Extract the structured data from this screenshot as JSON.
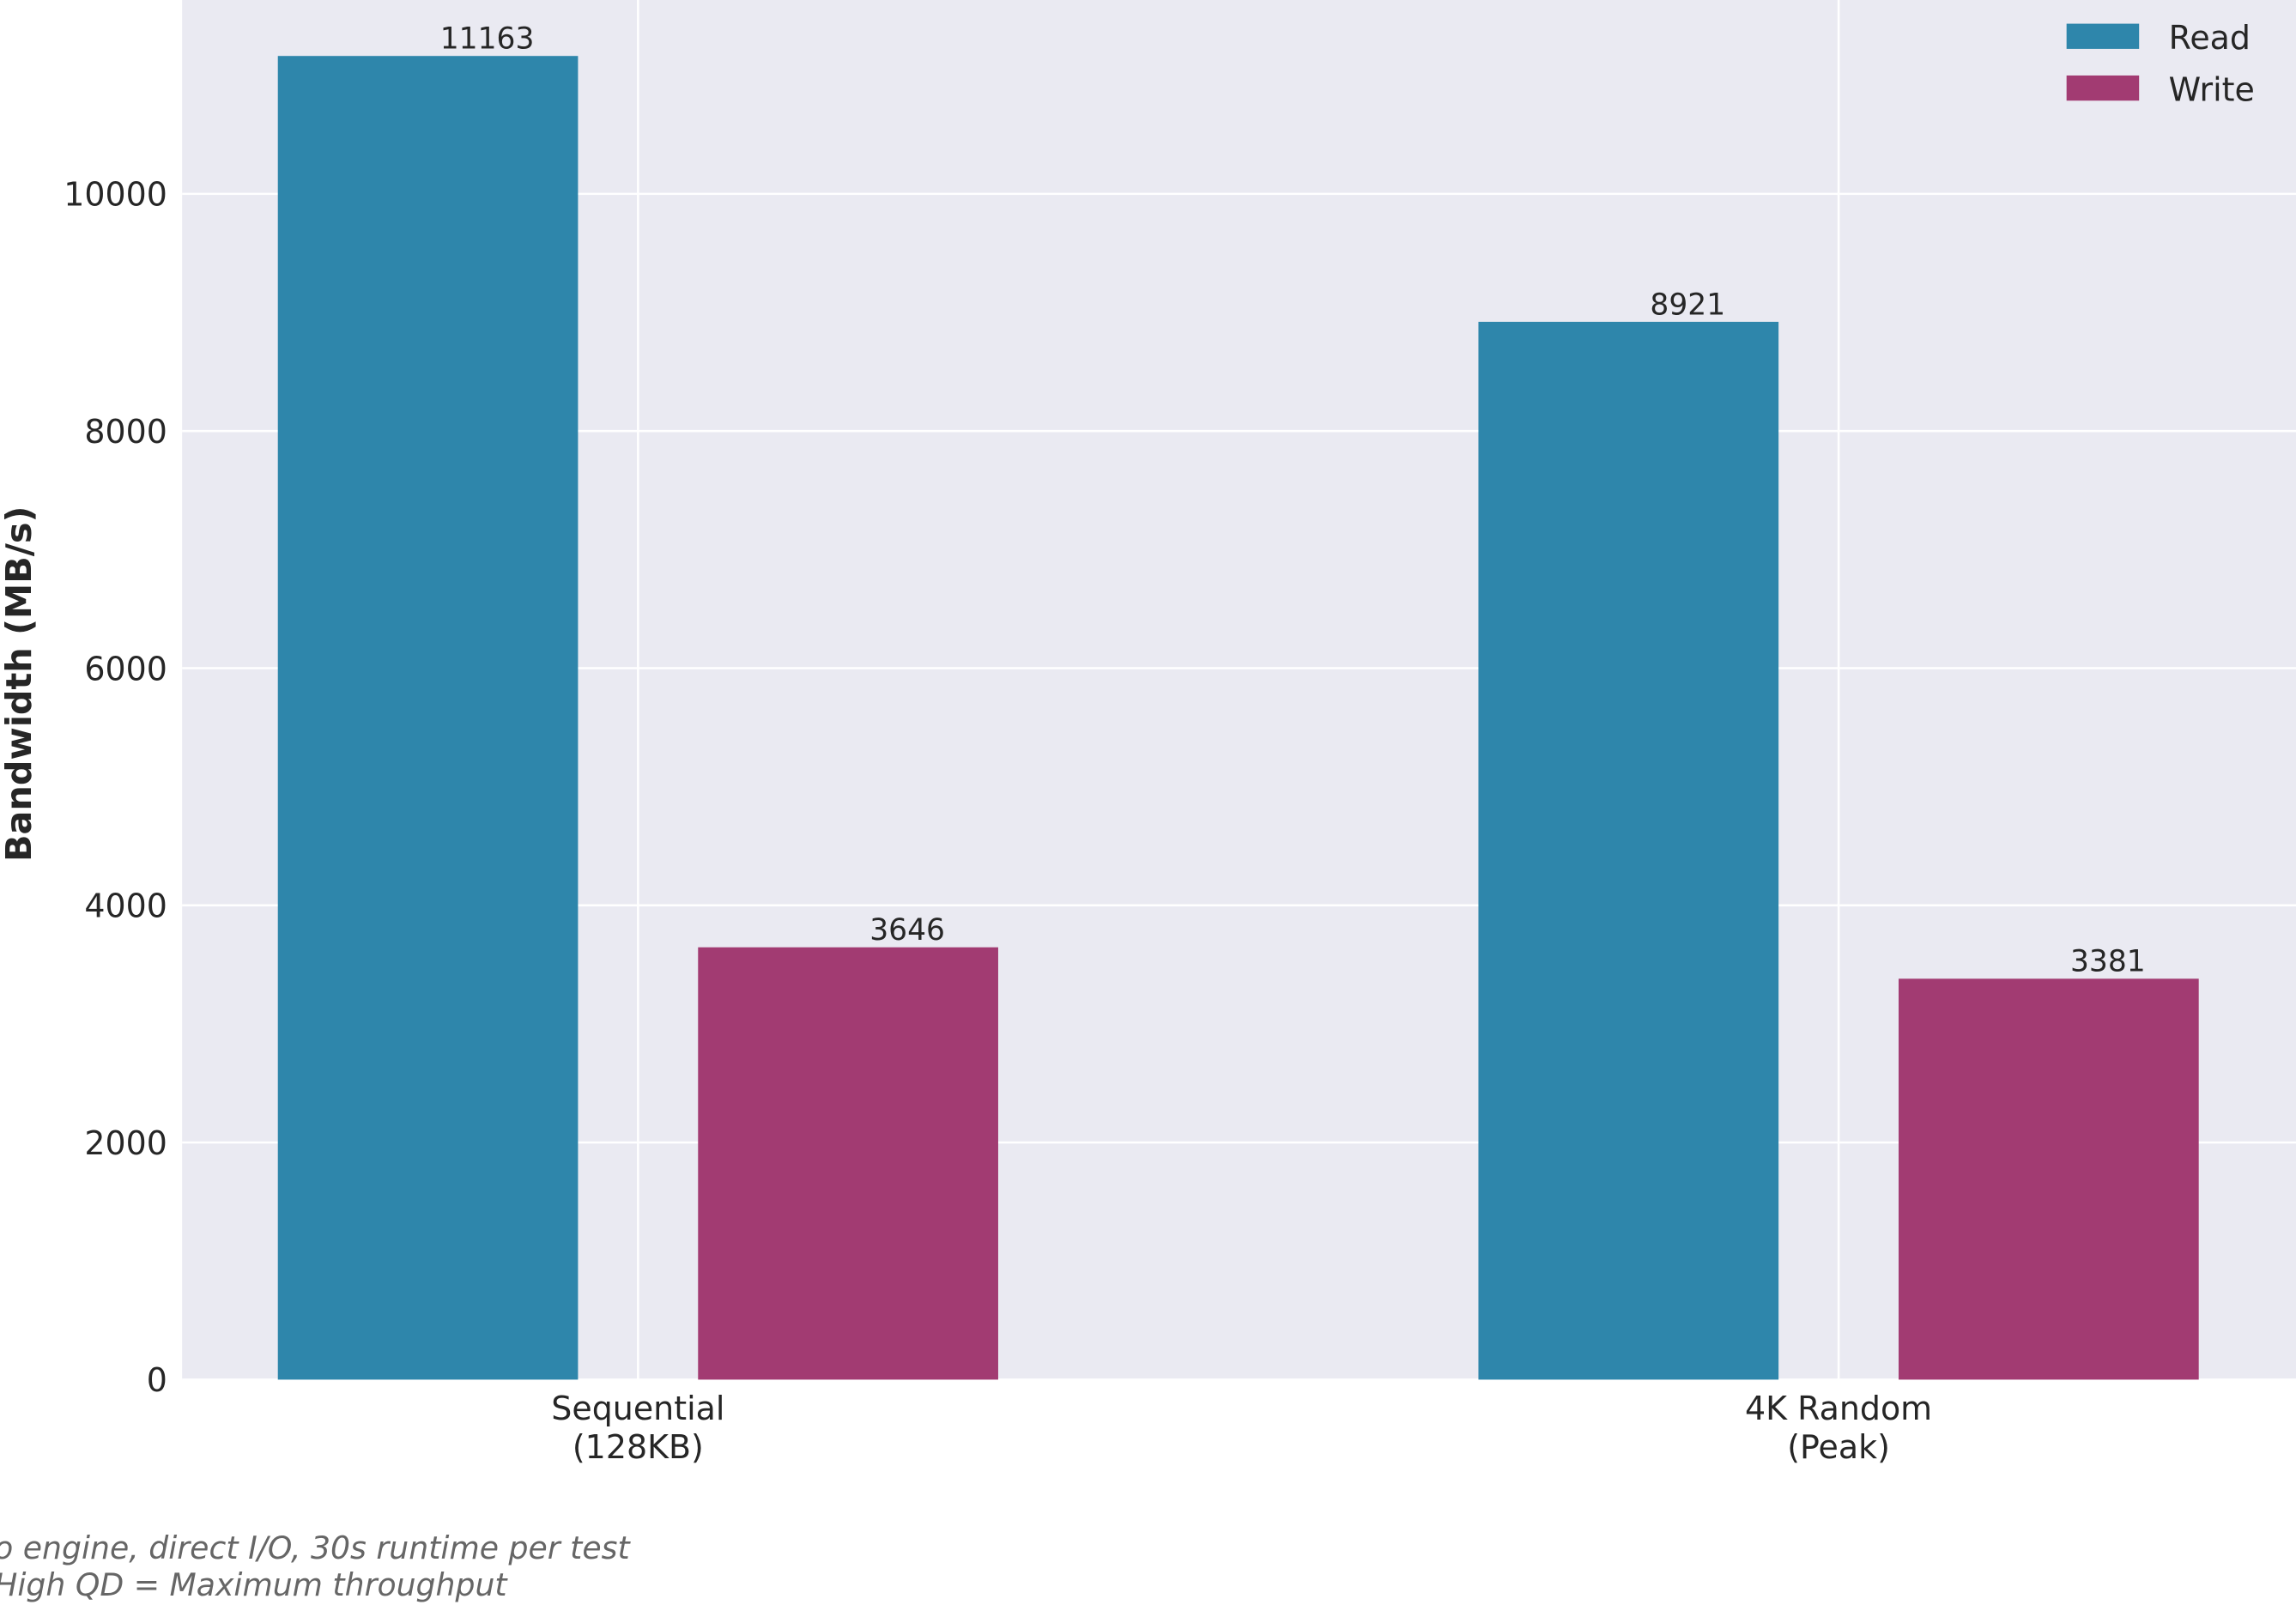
{
  "chart_data": {
    "type": "bar",
    "categories": [
      "Sequential\n(128KB)",
      "4K Random\n(Peak)"
    ],
    "series": [
      {
        "name": "Read",
        "values": [
          11163,
          8921
        ],
        "color": "#2e86ab"
      },
      {
        "name": "Write",
        "values": [
          3646,
          3381
        ],
        "color": "#a23b72"
      }
    ],
    "title": "",
    "xlabel": "",
    "ylabel": "Bandwidth (MB/s)",
    "ylim": [
      0,
      11635
    ],
    "yticks": [
      0,
      2000,
      4000,
      6000,
      8000,
      10000
    ],
    "grid": true,
    "legend_placement": "top-right",
    "background": "#eaeaf2",
    "footnotes": [
      "o engine, direct I/O, 30s runtime per test",
      "High QD = Maximum throughput"
    ]
  }
}
